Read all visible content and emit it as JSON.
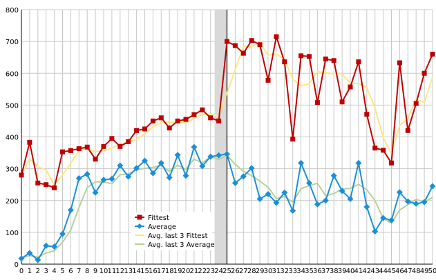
{
  "chart_data": {
    "type": "line",
    "x": [
      0,
      1,
      2,
      3,
      4,
      5,
      6,
      7,
      8,
      9,
      10,
      11,
      12,
      13,
      14,
      15,
      16,
      17,
      18,
      19,
      20,
      21,
      22,
      23,
      24,
      25,
      26,
      27,
      28,
      29,
      30,
      31,
      32,
      33,
      34,
      35,
      36,
      37,
      38,
      39,
      40,
      41,
      42,
      43,
      44,
      45,
      46,
      47,
      48,
      49,
      50
    ],
    "ylim": [
      0,
      800
    ],
    "yticks": [
      0,
      100,
      200,
      300,
      400,
      500,
      600,
      700,
      800
    ],
    "grid": true,
    "legend": "lower-center",
    "highlight_band": [
      24,
      25
    ],
    "vertical_marker_x": 25,
    "series": [
      {
        "name": "Fittest",
        "color": "#c00000",
        "marker": "square",
        "values": [
          280,
          383,
          255,
          250,
          240,
          353,
          357,
          363,
          368,
          330,
          370,
          395,
          370,
          385,
          420,
          425,
          450,
          460,
          428,
          450,
          455,
          470,
          485,
          460,
          450,
          700,
          687,
          663,
          703,
          690,
          578,
          715,
          636,
          393,
          655,
          653,
          508,
          645,
          640,
          510,
          557,
          636,
          471,
          365,
          358,
          318,
          633,
          420,
          505,
          600,
          660
        ]
      },
      {
        "name": "Average",
        "color": "#1a8fd8",
        "marker": "diamond",
        "values": [
          18,
          35,
          13,
          58,
          55,
          95,
          170,
          270,
          283,
          225,
          265,
          268,
          310,
          275,
          302,
          325,
          286,
          318,
          272,
          343,
          278,
          368,
          308,
          338,
          342,
          346,
          255,
          276,
          302,
          205,
          220,
          193,
          225,
          168,
          318,
          255,
          188,
          200,
          278,
          230,
          205,
          318,
          180,
          103,
          145,
          138,
          226,
          197,
          190,
          195,
          245
        ]
      },
      {
        "name": "Avg. last 3 Fittest",
        "color": "#ffe680",
        "marker": "none",
        "values": [
          280,
          331,
          306,
          296,
          248,
          281,
          317,
          358,
          363,
          354,
          356,
          365,
          378,
          383,
          392,
          410,
          432,
          445,
          446,
          446,
          444,
          458,
          470,
          472,
          465,
          537,
          612,
          683,
          684,
          693,
          657,
          661,
          643,
          581,
          561,
          567,
          605,
          602,
          598,
          598,
          569,
          568,
          555,
          491,
          398,
          347,
          436,
          457,
          519,
          508,
          588
        ]
      },
      {
        "name": "Avg. last 3 Average",
        "color": "#b8d098",
        "marker": "none",
        "values": [
          18,
          27,
          22,
          35,
          42,
          69,
          107,
          178,
          241,
          259,
          258,
          253,
          281,
          284,
          296,
          301,
          304,
          310,
          292,
          311,
          298,
          330,
          318,
          338,
          329,
          342,
          314,
          292,
          278,
          261,
          242,
          206,
          213,
          195,
          237,
          247,
          254,
          215,
          222,
          236,
          238,
          251,
          234,
          200,
          143,
          129,
          170,
          187,
          204,
          194,
          210
        ]
      }
    ]
  }
}
